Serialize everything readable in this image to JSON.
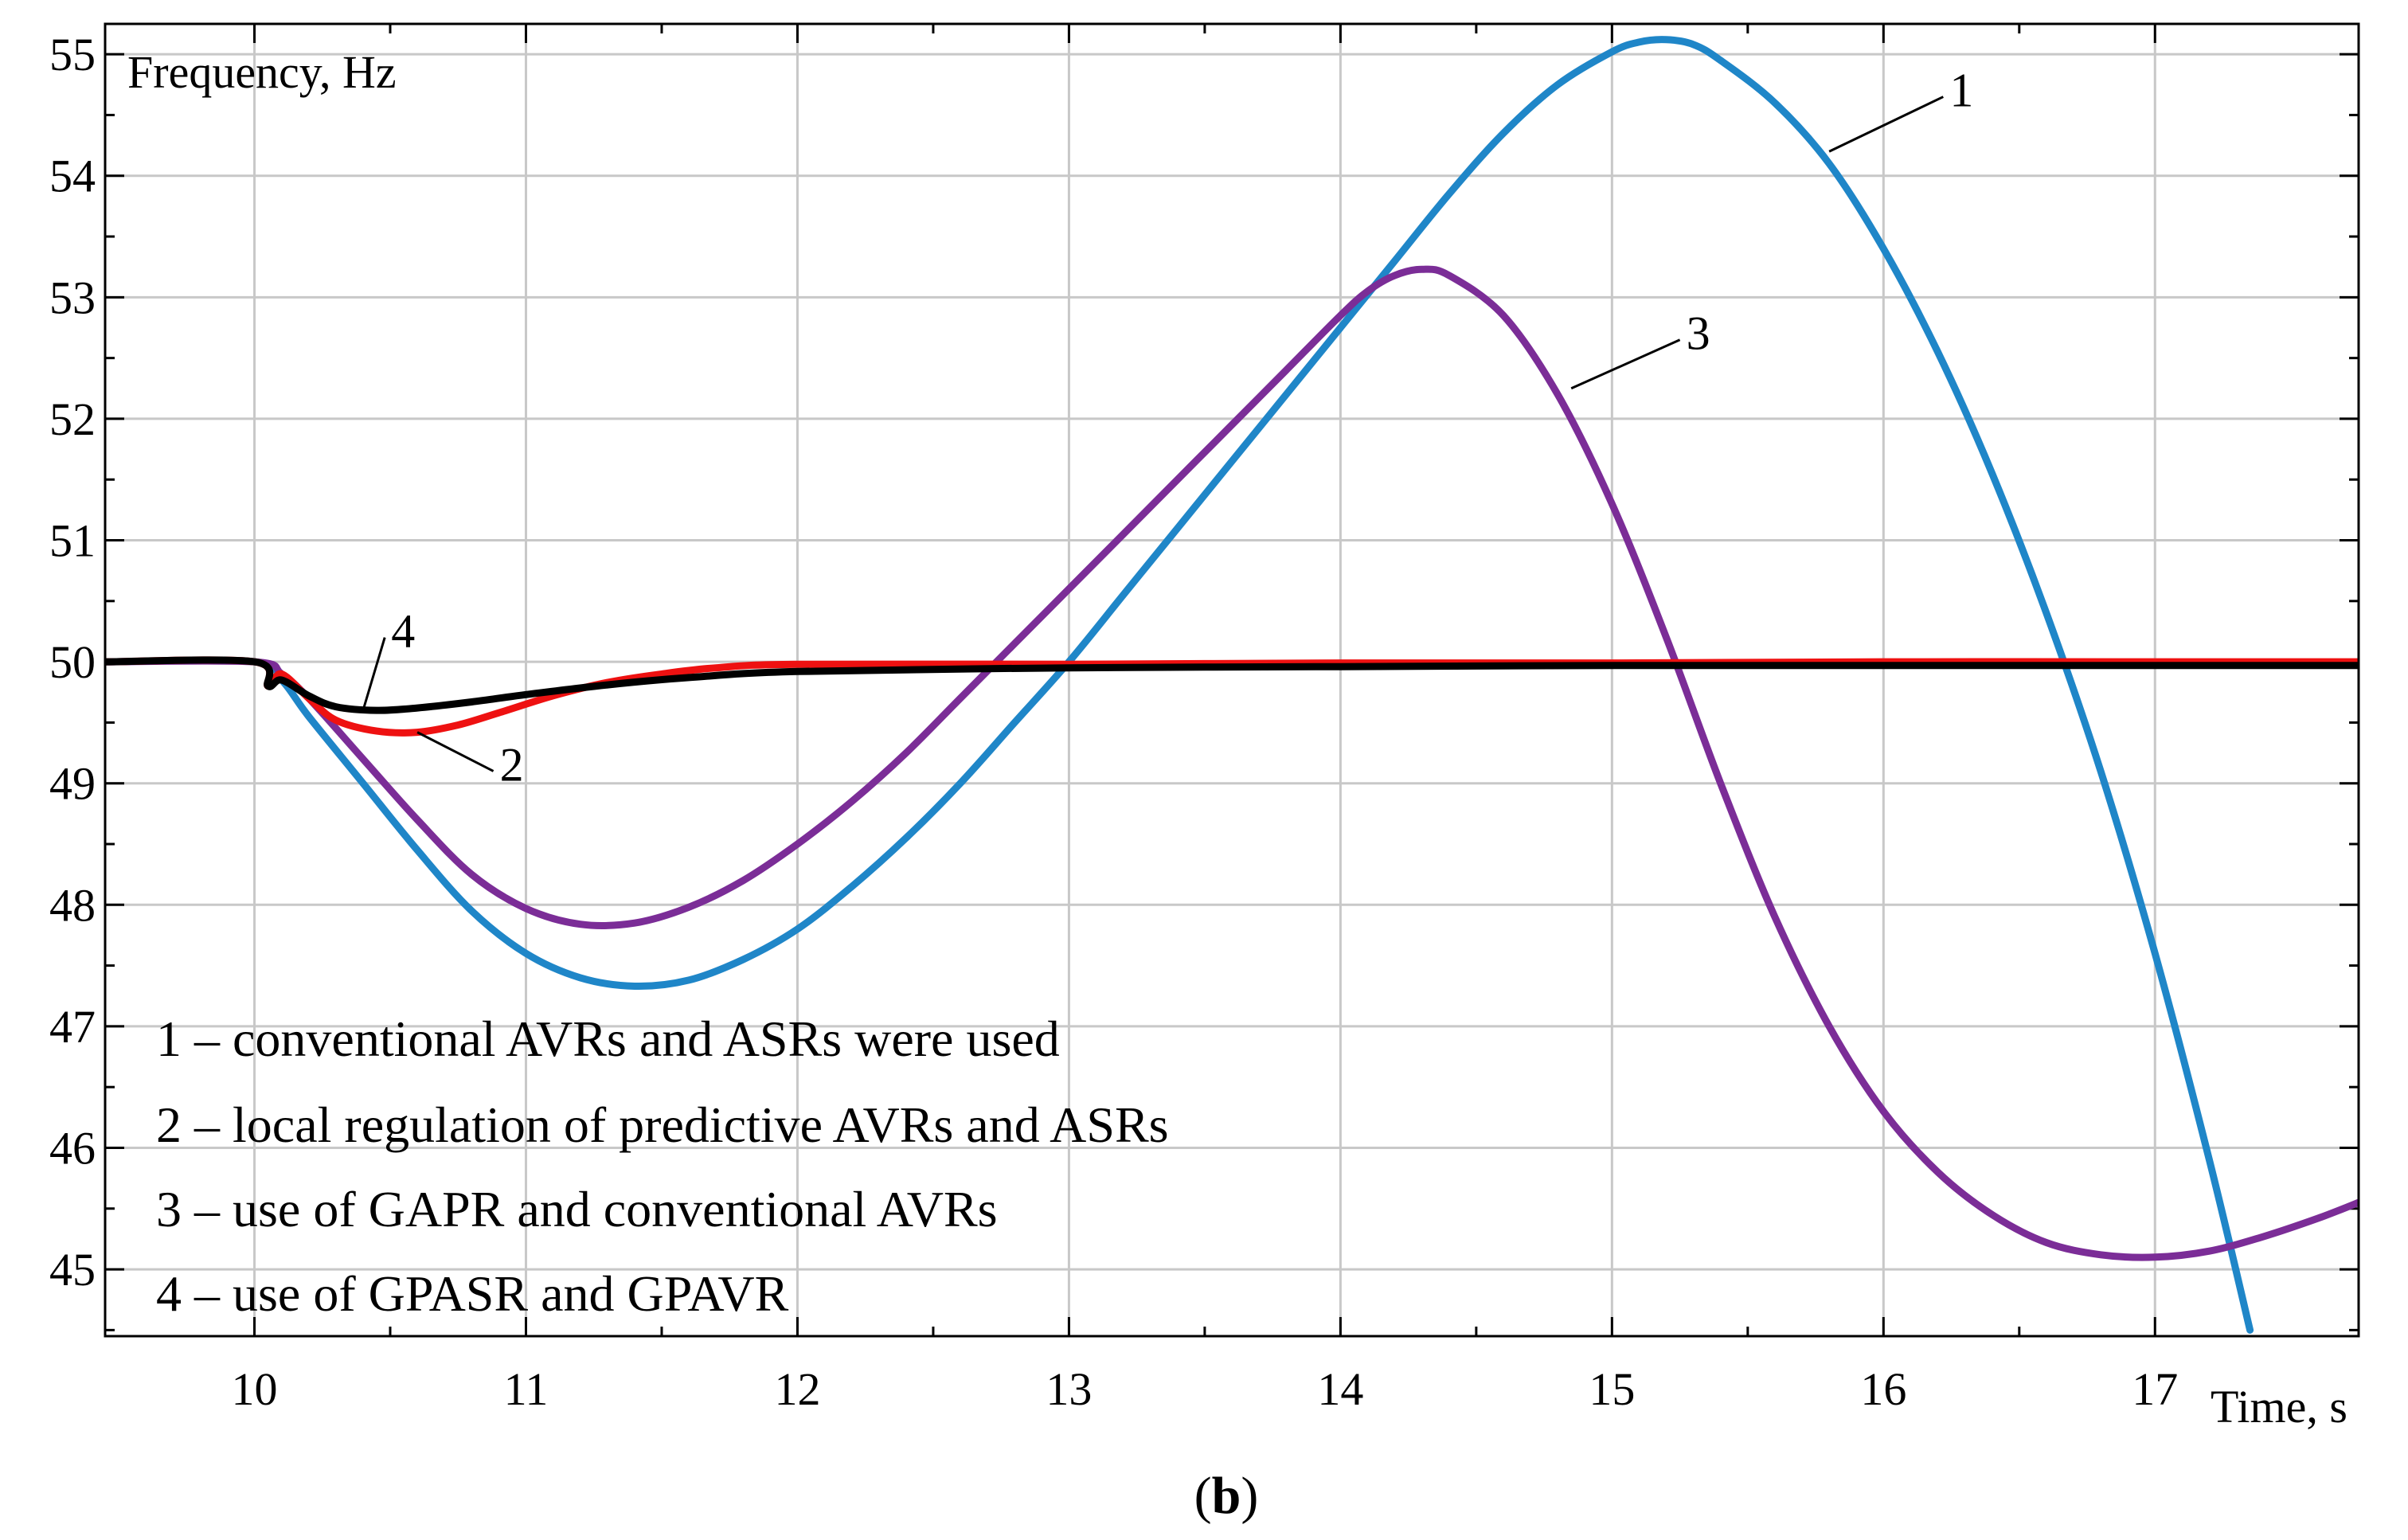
{
  "chart_data": {
    "type": "line",
    "ylabel": "Frequency, Hz",
    "xlabel": "Time, s",
    "panel_label_open": "(",
    "panel_label_bold": "b",
    "panel_label_close": ")",
    "xlim": [
      9.45,
      17.75
    ],
    "ylim": [
      44.45,
      55.25
    ],
    "x_ticks": [
      10,
      11,
      12,
      13,
      14,
      15,
      16,
      17
    ],
    "y_ticks": [
      45,
      46,
      47,
      48,
      49,
      50,
      51,
      52,
      53,
      54,
      55
    ],
    "grid": true,
    "legend": [
      "1 – conventional AVRs and ASRs were used",
      "2 – local regulation of predictive AVRs and ASRs",
      "3 – use of GAPR and conventional AVRs",
      "4 – use of GPASR and GPAVR"
    ],
    "series": [
      {
        "name": "1",
        "color": "#1f86c8",
        "x": [
          9.45,
          10.0,
          10.1,
          10.2,
          10.4,
          10.6,
          10.8,
          11.0,
          11.2,
          11.4,
          11.6,
          11.8,
          12.0,
          12.2,
          12.4,
          12.6,
          12.8,
          13.0,
          13.2,
          13.4,
          13.6,
          13.8,
          14.0,
          14.2,
          14.4,
          14.6,
          14.8,
          15.0,
          15.1,
          15.2,
          15.3,
          15.4,
          15.6,
          15.8,
          16.0,
          16.2,
          16.4,
          16.6,
          16.8,
          17.0,
          17.2,
          17.35
        ],
        "y": [
          50.0,
          50.0,
          49.85,
          49.55,
          49.0,
          48.45,
          47.95,
          47.6,
          47.4,
          47.33,
          47.38,
          47.55,
          47.8,
          48.15,
          48.55,
          49.0,
          49.5,
          50.0,
          50.55,
          51.1,
          51.65,
          52.2,
          52.75,
          53.3,
          53.85,
          54.35,
          54.75,
          55.02,
          55.1,
          55.12,
          55.08,
          54.95,
          54.6,
          54.1,
          53.4,
          52.55,
          51.55,
          50.4,
          49.1,
          47.6,
          45.9,
          44.5
        ]
      },
      {
        "name": "2",
        "color": "#ee1111",
        "x": [
          9.45,
          10.0,
          10.05,
          10.1,
          10.2,
          10.3,
          10.45,
          10.6,
          10.75,
          10.9,
          11.1,
          11.3,
          11.5,
          11.7,
          12.0,
          13.0,
          14.0,
          15.0,
          16.0,
          17.0,
          17.75
        ],
        "y": [
          50.0,
          50.0,
          49.8,
          49.9,
          49.7,
          49.52,
          49.43,
          49.42,
          49.48,
          49.58,
          49.72,
          49.83,
          49.9,
          49.95,
          49.98,
          49.98,
          49.99,
          49.99,
          50.0,
          50.0,
          50.0
        ]
      },
      {
        "name": "3",
        "color": "#7b2d97",
        "x": [
          9.45,
          10.0,
          10.1,
          10.2,
          10.4,
          10.6,
          10.8,
          11.0,
          11.2,
          11.4,
          11.6,
          11.8,
          12.0,
          12.2,
          12.4,
          12.6,
          12.8,
          13.0,
          13.2,
          13.4,
          13.6,
          13.8,
          14.0,
          14.1,
          14.2,
          14.3,
          14.4,
          14.6,
          14.8,
          15.0,
          15.2,
          15.4,
          15.6,
          15.8,
          16.0,
          16.2,
          16.4,
          16.6,
          16.8,
          17.0,
          17.2,
          17.4,
          17.6,
          17.75
        ],
        "y": [
          50.0,
          50.0,
          49.9,
          49.7,
          49.2,
          48.7,
          48.25,
          47.97,
          47.84,
          47.85,
          47.98,
          48.2,
          48.5,
          48.85,
          49.25,
          49.7,
          50.15,
          50.6,
          51.05,
          51.5,
          51.95,
          52.4,
          52.85,
          53.05,
          53.18,
          53.23,
          53.18,
          52.85,
          52.2,
          51.3,
          50.2,
          49.0,
          47.9,
          47.0,
          46.3,
          45.8,
          45.45,
          45.22,
          45.12,
          45.1,
          45.15,
          45.27,
          45.42,
          45.55
        ]
      },
      {
        "name": "4",
        "color": "#000000",
        "x": [
          9.45,
          10.0,
          10.05,
          10.1,
          10.2,
          10.3,
          10.45,
          10.6,
          10.8,
          11.0,
          11.3,
          11.6,
          12.0,
          13.0,
          14.0,
          15.0,
          16.0,
          17.0,
          17.75
        ],
        "y": [
          50.0,
          50.0,
          49.8,
          49.85,
          49.72,
          49.63,
          49.6,
          49.62,
          49.67,
          49.73,
          49.81,
          49.87,
          49.92,
          49.95,
          49.96,
          49.97,
          49.97,
          49.97,
          49.97
        ]
      }
    ],
    "curve_labels": [
      {
        "text": "1",
        "at": [
          15.8,
          54.2
        ],
        "label_at": [
          16.22,
          54.65
        ]
      },
      {
        "text": "2",
        "at": [
          10.6,
          49.42
        ],
        "label_at": [
          10.88,
          49.1
        ]
      },
      {
        "text": "3",
        "at": [
          14.85,
          52.25
        ],
        "label_at": [
          15.25,
          52.65
        ]
      },
      {
        "text": "4",
        "at": [
          10.4,
          49.6
        ],
        "label_at": [
          10.48,
          50.2
        ]
      }
    ]
  }
}
